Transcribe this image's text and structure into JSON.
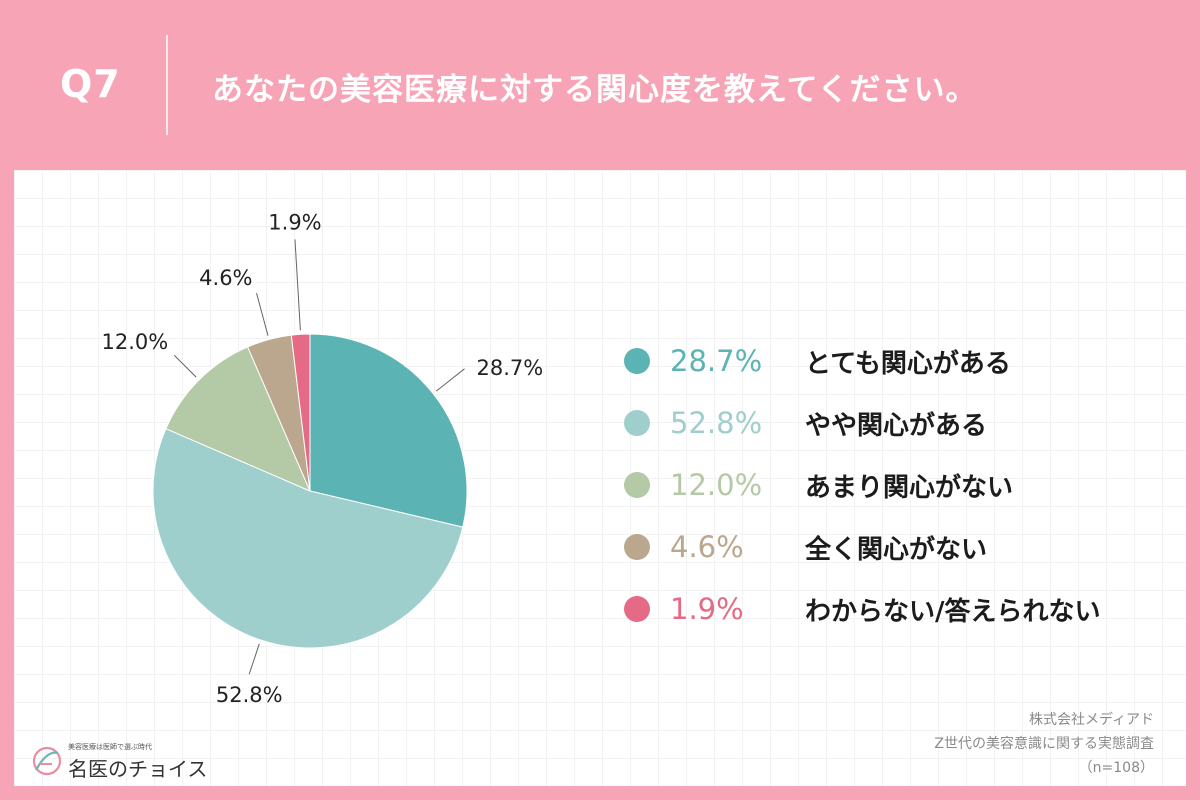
{
  "header": {
    "q_number": "Q7",
    "question": "あなたの美容医療に対する関心度を教えてください。"
  },
  "colors": {
    "background": "#f7a4b6",
    "slice_colors": [
      "#5cb3b4",
      "#9ecfcd",
      "#b4c9a5",
      "#bba68e",
      "#e56a86"
    ]
  },
  "chart_data": {
    "type": "pie",
    "categories": [
      "とても関心がある",
      "やや関心がある",
      "あまり関心がない",
      "全く関心がない",
      "わからない/答えられない"
    ],
    "values": [
      28.7,
      52.8,
      12.0,
      4.6,
      1.9
    ],
    "value_labels": [
      "28.7%",
      "52.8%",
      "12.0%",
      "4.6%",
      "1.9%"
    ],
    "start_angle": "12 o'clock",
    "direction": "clockwise",
    "legend_placement": "right"
  },
  "legend": [
    {
      "pct": "28.7%",
      "label": "とても関心がある"
    },
    {
      "pct": "52.8%",
      "label": "やや関心がある"
    },
    {
      "pct": "12.0%",
      "label": "あまり関心がない"
    },
    {
      "pct": "4.6%",
      "label": "全く関心がない"
    },
    {
      "pct": "1.9%",
      "label": "わからない/答えられない"
    }
  ],
  "source": {
    "line1": "株式会社メディアド",
    "line2": "Z世代の美容意識に関する実態調査",
    "line3": "（n=108）"
  },
  "logo": {
    "tagline": "美容医療は医師で選ぶ時代",
    "name": "名医のチョイス"
  }
}
